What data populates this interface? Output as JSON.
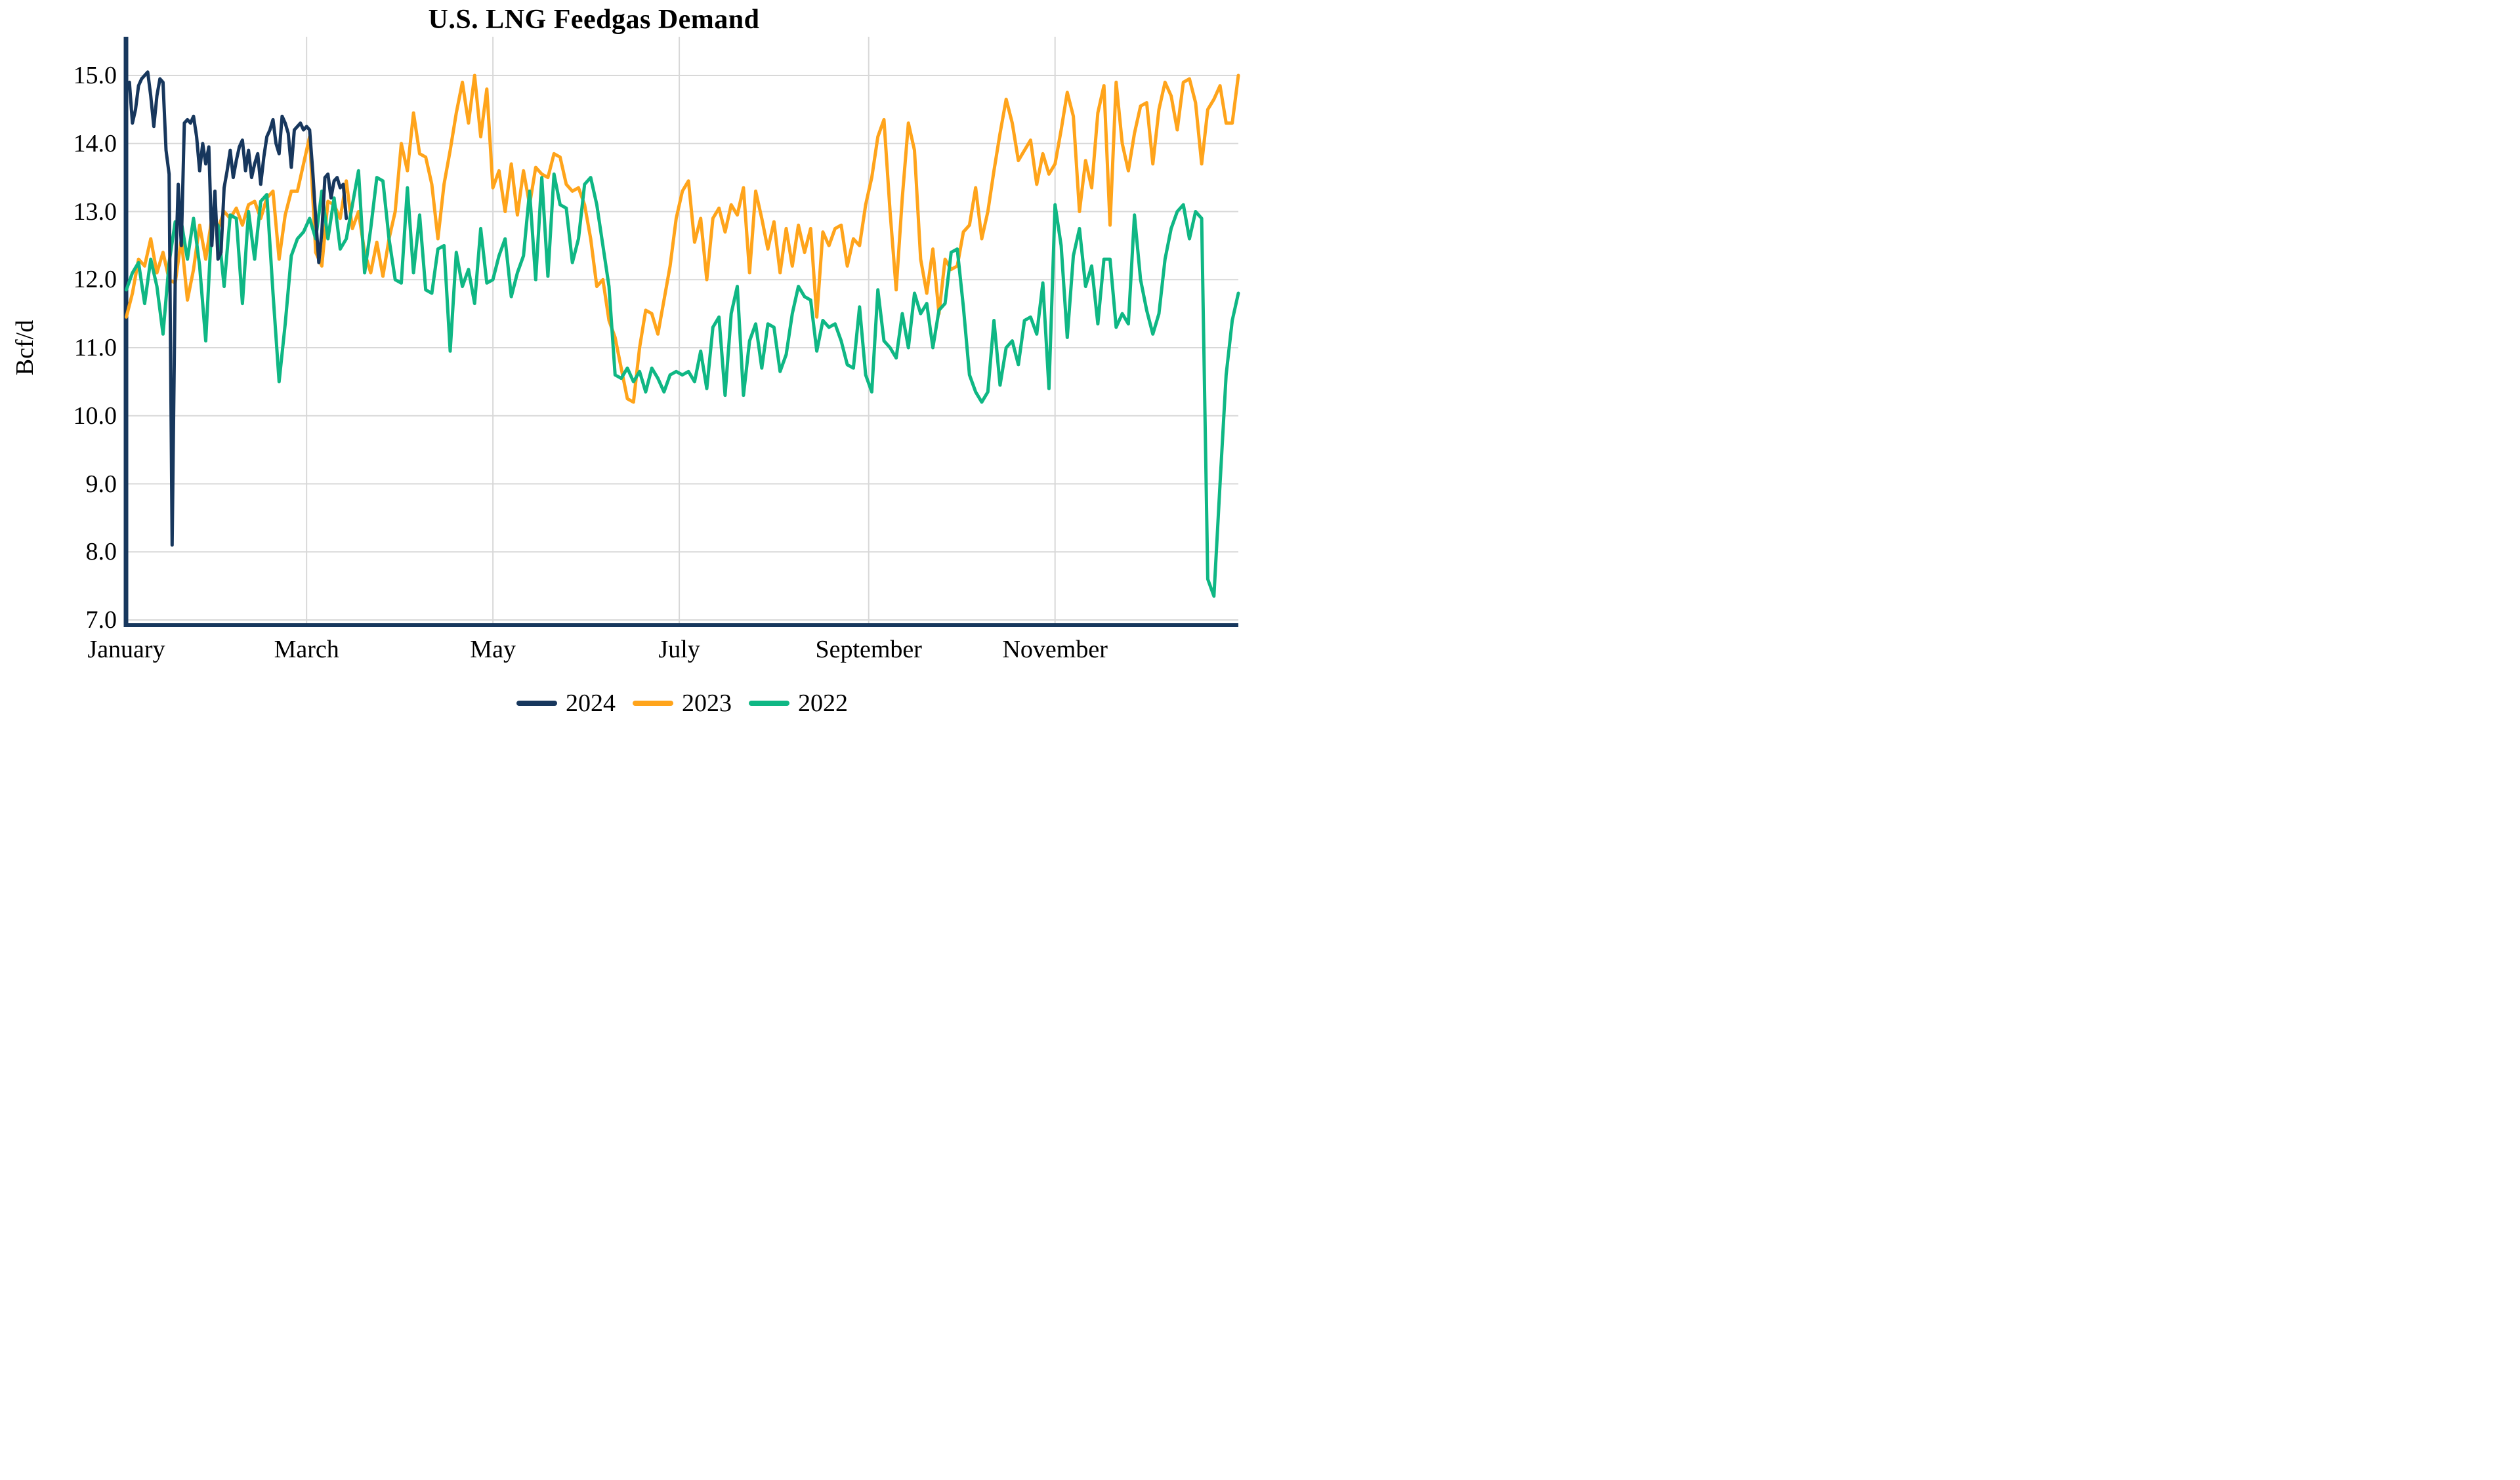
{
  "chart_data": {
    "type": "line",
    "title": "U.S. LNG Feedgas Demand",
    "ylabel": "Bcf/d",
    "xlabel": "",
    "x_unit": "day_of_year",
    "days_in_year": 365,
    "ylim": [
      7.0,
      15.55
    ],
    "grid": true,
    "background": "#ffffff",
    "gridline_color": "#d8d8d8",
    "axis_line_color": "#17375D",
    "y_ticks": {
      "values": [
        15.0,
        14.0,
        13.0,
        12.0,
        11.0,
        10.0,
        9.0,
        8.0,
        7.0
      ],
      "labels": [
        "15.0",
        "14.0",
        "13.0",
        "12.0",
        "11.0",
        "10.0",
        "9.0",
        "8.0",
        "7.0"
      ]
    },
    "x_ticks": {
      "days": [
        1,
        60,
        121,
        182,
        244,
        305
      ],
      "labels": [
        "January",
        "March",
        "May",
        "July",
        "September",
        "November"
      ]
    },
    "legend": {
      "position": "bottom-center",
      "entries": [
        "2024",
        "2023",
        "2022"
      ]
    },
    "series": [
      {
        "name": "2024",
        "color": "#17375D",
        "start_day": 1,
        "day_step": 1,
        "note": "daily values Jan 1 - Mar 13",
        "values": [
          14.85,
          14.9,
          14.3,
          14.5,
          14.85,
          14.95,
          15.0,
          15.05,
          14.7,
          14.25,
          14.7,
          14.95,
          14.9,
          13.9,
          13.55,
          8.1,
          12.0,
          13.4,
          12.5,
          14.3,
          14.35,
          14.3,
          14.4,
          14.1,
          13.6,
          14.0,
          13.7,
          13.95,
          12.5,
          13.3,
          12.3,
          12.4,
          13.35,
          13.6,
          13.9,
          13.5,
          13.75,
          13.95,
          14.05,
          13.6,
          13.9,
          13.5,
          13.7,
          13.85,
          13.4,
          13.8,
          14.1,
          14.2,
          14.35,
          14.0,
          13.85,
          14.4,
          14.3,
          14.15,
          13.65,
          14.2,
          14.25,
          14.3,
          14.2,
          14.25,
          14.2,
          13.6,
          12.9,
          12.25,
          12.7,
          13.5,
          13.55,
          13.2,
          13.45,
          13.5,
          13.35,
          13.4,
          12.9
        ]
      },
      {
        "name": "2023",
        "color": "#FFA41B",
        "start_day": 1,
        "day_step": 2,
        "note": "values every 2 days, full year",
        "values": [
          11.45,
          11.8,
          12.3,
          12.2,
          12.6,
          12.1,
          12.4,
          12.0,
          11.95,
          12.6,
          11.7,
          12.15,
          12.8,
          12.3,
          12.9,
          12.75,
          13.0,
          12.9,
          13.05,
          12.8,
          13.1,
          13.15,
          12.9,
          13.2,
          13.3,
          12.3,
          12.95,
          13.3,
          13.3,
          13.7,
          14.1,
          12.4,
          12.2,
          13.15,
          13.1,
          12.9,
          13.45,
          12.75,
          13.0,
          12.4,
          12.1,
          12.55,
          12.05,
          12.6,
          13.0,
          14.0,
          13.6,
          14.45,
          13.85,
          13.8,
          13.4,
          12.6,
          13.4,
          13.9,
          14.45,
          14.9,
          14.3,
          15.0,
          14.1,
          14.8,
          13.35,
          13.6,
          13.0,
          13.7,
          12.95,
          13.6,
          13.1,
          13.65,
          13.55,
          13.5,
          13.85,
          13.8,
          13.4,
          13.3,
          13.35,
          13.1,
          12.6,
          11.9,
          12.0,
          11.4,
          11.15,
          10.7,
          10.25,
          10.2,
          11.0,
          11.55,
          11.5,
          11.2,
          11.7,
          12.2,
          12.9,
          13.3,
          13.45,
          12.55,
          12.9,
          12.0,
          12.9,
          13.05,
          12.7,
          13.1,
          12.95,
          13.35,
          12.1,
          13.3,
          12.9,
          12.45,
          12.85,
          12.1,
          12.75,
          12.2,
          12.8,
          12.4,
          12.75,
          11.45,
          12.7,
          12.5,
          12.75,
          12.8,
          12.2,
          12.6,
          12.5,
          13.1,
          13.5,
          14.1,
          14.35,
          13.0,
          11.85,
          13.2,
          14.3,
          13.9,
          12.3,
          11.8,
          12.45,
          11.5,
          12.3,
          12.15,
          12.2,
          12.7,
          12.8,
          13.35,
          12.6,
          13.0,
          13.6,
          14.15,
          14.65,
          14.3,
          13.75,
          13.9,
          14.05,
          13.4,
          13.85,
          13.55,
          13.7,
          14.2,
          14.75,
          14.4,
          13.0,
          13.75,
          13.35,
          14.45,
          14.85,
          12.8,
          14.9,
          14.0,
          13.6,
          14.15,
          14.55,
          14.6,
          13.7,
          14.5,
          14.9,
          14.7,
          14.2,
          14.9,
          14.95,
          14.6,
          13.7,
          14.5,
          14.65,
          14.85,
          14.3,
          14.3,
          15.0
        ]
      },
      {
        "name": "2022",
        "color": "#0FB784",
        "start_day": 1,
        "day_step": 2,
        "note": "values every 2 days, full year",
        "values": [
          11.85,
          12.1,
          12.25,
          11.65,
          12.3,
          11.9,
          11.2,
          12.25,
          12.85,
          12.85,
          12.3,
          12.9,
          12.2,
          11.1,
          12.85,
          12.8,
          11.9,
          12.95,
          12.9,
          11.65,
          13.0,
          12.3,
          13.15,
          13.25,
          11.8,
          10.5,
          11.35,
          12.35,
          12.6,
          12.7,
          12.9,
          12.6,
          13.3,
          12.6,
          13.2,
          12.45,
          12.6,
          13.1,
          13.6,
          12.1,
          12.75,
          13.5,
          13.45,
          12.6,
          12.0,
          11.95,
          13.35,
          12.1,
          12.95,
          11.85,
          11.8,
          12.45,
          12.5,
          10.95,
          12.4,
          11.9,
          12.15,
          11.65,
          12.75,
          11.95,
          12.0,
          12.35,
          12.6,
          11.75,
          12.1,
          12.35,
          13.3,
          12.0,
          13.5,
          12.05,
          13.55,
          13.1,
          13.05,
          12.25,
          12.6,
          13.4,
          13.5,
          13.1,
          12.5,
          11.9,
          10.6,
          10.55,
          10.7,
          10.5,
          10.65,
          10.35,
          10.7,
          10.55,
          10.35,
          10.6,
          10.65,
          10.6,
          10.65,
          10.5,
          10.95,
          10.4,
          11.3,
          11.45,
          10.3,
          11.5,
          11.9,
          10.3,
          11.1,
          11.35,
          10.7,
          11.35,
          11.3,
          10.65,
          10.9,
          11.5,
          11.9,
          11.75,
          11.7,
          10.95,
          11.4,
          11.3,
          11.35,
          11.1,
          10.75,
          10.7,
          11.6,
          10.6,
          10.35,
          11.85,
          11.1,
          11.0,
          10.85,
          11.5,
          11.0,
          11.8,
          11.5,
          11.65,
          11.0,
          11.55,
          11.65,
          12.4,
          12.45,
          11.6,
          10.6,
          10.35,
          10.2,
          10.35,
          11.4,
          10.45,
          11.0,
          11.1,
          10.75,
          11.4,
          11.45,
          11.2,
          11.95,
          10.4,
          13.1,
          12.5,
          11.15,
          12.35,
          12.75,
          11.9,
          12.2,
          11.35,
          12.3,
          12.3,
          11.3,
          11.5,
          11.35,
          12.95,
          12.0,
          11.55,
          11.2,
          11.5,
          12.3,
          12.75,
          13.0,
          13.1,
          12.6,
          13.0,
          12.9,
          7.6,
          7.35,
          9.0,
          10.6,
          11.4,
          11.8
        ]
      }
    ],
    "draw_order": [
      "2023",
      "2022",
      "2024"
    ]
  }
}
